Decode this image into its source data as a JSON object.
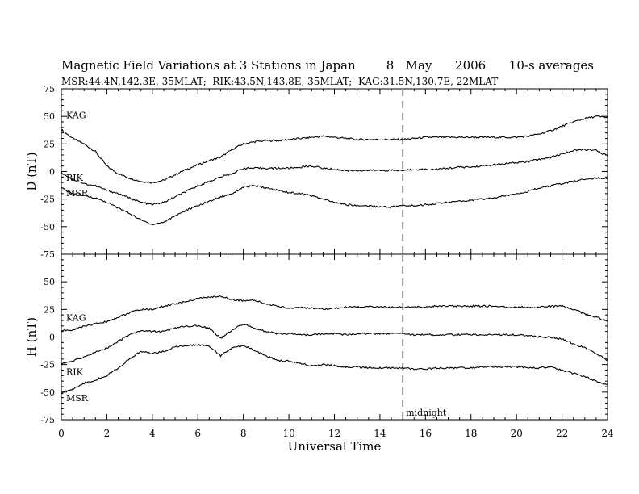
{
  "title": "Magnetic Field Variations at 3 Stations in Japan        8   May      2006      10-s averages",
  "subtitle": "MSR:44.4N,142.3E, 35MLAT;  RIK:43.5N,143.8E, 35MLAT;  KAG:31.5N,130.7E, 22MLAT",
  "chart_data": [
    {
      "type": "line",
      "ylabel": "D (nT)",
      "ylim": [
        -75,
        75
      ],
      "yticks": [
        75,
        50,
        25,
        0,
        -25,
        -50,
        -75
      ],
      "xlim": [
        0,
        24
      ],
      "series": [
        {
          "name": "KAG",
          "x": [
            0,
            0.5,
            1,
            1.5,
            2,
            2.5,
            3,
            3.5,
            4,
            4.5,
            5,
            5.5,
            6,
            6.5,
            7,
            7.5,
            8,
            8.5,
            9,
            9.5,
            10,
            10.5,
            11,
            11.5,
            12,
            12.5,
            13,
            13.5,
            14,
            14.5,
            15,
            15.5,
            16,
            16.5,
            17,
            17.5,
            18,
            18.5,
            19,
            19.5,
            20,
            20.5,
            21,
            21.5,
            22,
            22.5,
            23,
            23.5,
            24
          ],
          "y": [
            38,
            30,
            25,
            18,
            5,
            -2,
            -6,
            -9,
            -10,
            -8,
            -3,
            2,
            6,
            10,
            13,
            20,
            25,
            27,
            28,
            28,
            29,
            30,
            31,
            32,
            31,
            30,
            29,
            29,
            29,
            29,
            29,
            30,
            31,
            31,
            31,
            31,
            31,
            31,
            31,
            31,
            31,
            32,
            34,
            37,
            41,
            45,
            48,
            50,
            49
          ]
        },
        {
          "name": "RIK",
          "x": [
            0,
            0.5,
            1,
            1.5,
            2,
            2.5,
            3,
            3.5,
            4,
            4.5,
            5,
            5.5,
            6,
            6.5,
            7,
            7.5,
            8,
            8.5,
            9,
            9.5,
            10,
            10.5,
            11,
            11.5,
            12,
            12.5,
            13,
            13.5,
            14,
            14.5,
            15,
            15.5,
            16,
            16.5,
            17,
            17.5,
            18,
            18.5,
            19,
            19.5,
            20,
            20.5,
            21,
            21.5,
            22,
            22.5,
            23,
            23.5,
            24
          ],
          "y": [
            -1,
            -7,
            -11,
            -13,
            -17,
            -20,
            -24,
            -28,
            -30,
            -28,
            -23,
            -18,
            -13,
            -9,
            -5,
            -2,
            3,
            3,
            3,
            3,
            3,
            4,
            5,
            3,
            2,
            1,
            1,
            1,
            1,
            1,
            1,
            2,
            2,
            2,
            3,
            4,
            4,
            5,
            6,
            7,
            8,
            9,
            11,
            13,
            16,
            19,
            20,
            19,
            14
          ]
        },
        {
          "name": "MSR",
          "x": [
            0,
            0.5,
            1,
            1.5,
            2,
            2.5,
            3,
            3.5,
            4,
            4.5,
            5,
            5.5,
            6,
            6.5,
            7,
            7.5,
            8,
            8.5,
            9,
            9.5,
            10,
            10.5,
            11,
            11.5,
            12,
            12.5,
            13,
            13.5,
            14,
            14.5,
            15,
            15.5,
            16,
            16.5,
            17,
            17.5,
            18,
            18.5,
            19,
            19.5,
            20,
            20.5,
            21,
            21.5,
            22,
            22.5,
            23,
            23.5,
            24
          ],
          "y": [
            -15,
            -20,
            -22,
            -24,
            -28,
            -33,
            -38,
            -44,
            -48,
            -46,
            -40,
            -35,
            -31,
            -27,
            -23,
            -20,
            -14,
            -13,
            -15,
            -17,
            -19,
            -20,
            -22,
            -25,
            -28,
            -30,
            -31,
            -31,
            -32,
            -32,
            -31,
            -31,
            -30,
            -29,
            -28,
            -27,
            -26,
            -25,
            -24,
            -22,
            -20,
            -18,
            -15,
            -13,
            -11,
            -9,
            -7,
            -6,
            -6
          ]
        }
      ]
    },
    {
      "type": "line",
      "ylabel": "H (nT)",
      "xlabel": "Universal Time",
      "ylim": [
        -75,
        75
      ],
      "yticks": [
        50,
        25,
        0,
        -25,
        -50,
        -75
      ],
      "xlim": [
        0,
        24
      ],
      "xticks": [
        0,
        2,
        4,
        6,
        8,
        10,
        12,
        14,
        16,
        18,
        20,
        22,
        24
      ],
      "annotation": "midnight",
      "annotation_x": 15,
      "series": [
        {
          "name": "KAG",
          "x": [
            0,
            0.5,
            1,
            1.5,
            2,
            2.5,
            3,
            3.5,
            4,
            4.5,
            5,
            5.5,
            6,
            6.5,
            7,
            7.5,
            8,
            8.5,
            9,
            9.5,
            10,
            10.5,
            11,
            11.5,
            12,
            12.5,
            13,
            13.5,
            14,
            14.5,
            15,
            15.5,
            16,
            16.5,
            17,
            17.5,
            18,
            18.5,
            19,
            19.5,
            20,
            20.5,
            21,
            21.5,
            22,
            22.5,
            23,
            23.5,
            24
          ],
          "y": [
            6,
            6,
            10,
            12,
            14,
            18,
            22,
            25,
            25,
            28,
            30,
            32,
            35,
            36,
            37,
            34,
            33,
            33,
            30,
            28,
            26,
            27,
            26,
            25,
            26,
            27,
            27,
            28,
            27,
            27,
            27,
            27,
            27,
            28,
            28,
            28,
            28,
            28,
            28,
            27,
            27,
            27,
            27,
            28,
            28,
            25,
            21,
            18,
            14
          ]
        },
        {
          "name": "RIK",
          "x": [
            0,
            0.5,
            1,
            1.5,
            2,
            2.5,
            3,
            3.5,
            4,
            4.5,
            5,
            5.5,
            6,
            6.5,
            7,
            7.5,
            8,
            8.5,
            9,
            9.5,
            10,
            10.5,
            11,
            11.5,
            12,
            12.5,
            13,
            13.5,
            14,
            14.5,
            15,
            15.5,
            16,
            16.5,
            17,
            17.5,
            18,
            18.5,
            19,
            19.5,
            20,
            20.5,
            21,
            21.5,
            22,
            22.5,
            23,
            23.5,
            24
          ],
          "y": [
            -24,
            -22,
            -18,
            -14,
            -10,
            -4,
            2,
            6,
            5,
            5,
            8,
            10,
            10,
            8,
            -1,
            6,
            12,
            8,
            5,
            3,
            3,
            2,
            2,
            3,
            3,
            2,
            3,
            3,
            3,
            3,
            3,
            2,
            2,
            2,
            2,
            2,
            2,
            2,
            2,
            2,
            2,
            1,
            0,
            0,
            -2,
            -6,
            -10,
            -15,
            -21
          ]
        },
        {
          "name": "MSR",
          "x": [
            0,
            0.5,
            1,
            1.5,
            2,
            2.5,
            3,
            3.5,
            4,
            4.5,
            5,
            5.5,
            6,
            6.5,
            7,
            7.5,
            8,
            8.5,
            9,
            9.5,
            10,
            10.5,
            11,
            11.5,
            12,
            12.5,
            13,
            13.5,
            14,
            14.5,
            15,
            15.5,
            16,
            16.5,
            17,
            17.5,
            18,
            18.5,
            19,
            19.5,
            20,
            20.5,
            21,
            21.5,
            22,
            22.5,
            23,
            23.5,
            24
          ],
          "y": [
            -51,
            -47,
            -42,
            -39,
            -35,
            -28,
            -20,
            -13,
            -15,
            -13,
            -9,
            -8,
            -7,
            -8,
            -17,
            -10,
            -8,
            -12,
            -17,
            -21,
            -22,
            -24,
            -26,
            -25,
            -26,
            -27,
            -27,
            -28,
            -28,
            -28,
            -28,
            -29,
            -29,
            -28,
            -28,
            -28,
            -28,
            -27,
            -27,
            -27,
            -27,
            -28,
            -28,
            -27,
            -30,
            -33,
            -36,
            -40,
            -43
          ]
        }
      ]
    }
  ]
}
